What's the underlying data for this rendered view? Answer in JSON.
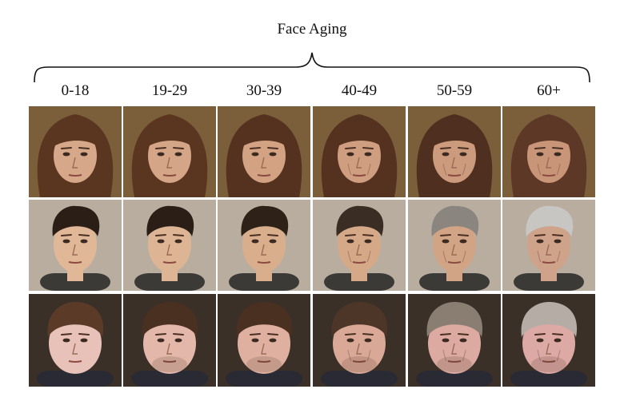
{
  "title": "Face Aging",
  "age_groups": [
    "0-18",
    "19-29",
    "30-39",
    "40-49",
    "50-59",
    "60+"
  ],
  "colors": {
    "row_backgrounds": [
      "#7a5f3a",
      "#b9ada0",
      "#3a3028"
    ],
    "hair": [
      [
        "#5a3520",
        "#5a3520",
        "#553220",
        "#553220",
        "#4f3020",
        "#5d3826"
      ],
      [
        "#2a1e16",
        "#2a1e16",
        "#2d2118",
        "#3a2e24",
        "#8a857f",
        "#c8c6c3"
      ],
      [
        "#5b3b28",
        "#4a3020",
        "#4a3020",
        "#4d3628",
        "#8a7d72",
        "#b5aca6"
      ]
    ],
    "skin": [
      [
        "#d6a889",
        "#d4a586",
        "#d2a283",
        "#cf9e80",
        "#cc9a7c",
        "#c99578"
      ],
      [
        "#e0b898",
        "#ddb494",
        "#d9ae8d",
        "#d5a888",
        "#d2a486",
        "#cfa28a"
      ],
      [
        "#e8c1b8",
        "#e3b8aa",
        "#dfb0a0",
        "#d9a896",
        "#dcaaa0",
        "#dda9a4"
      ]
    ],
    "shirts": [
      "#6b4a30",
      "#3c3a36",
      "#2a2a34"
    ]
  }
}
